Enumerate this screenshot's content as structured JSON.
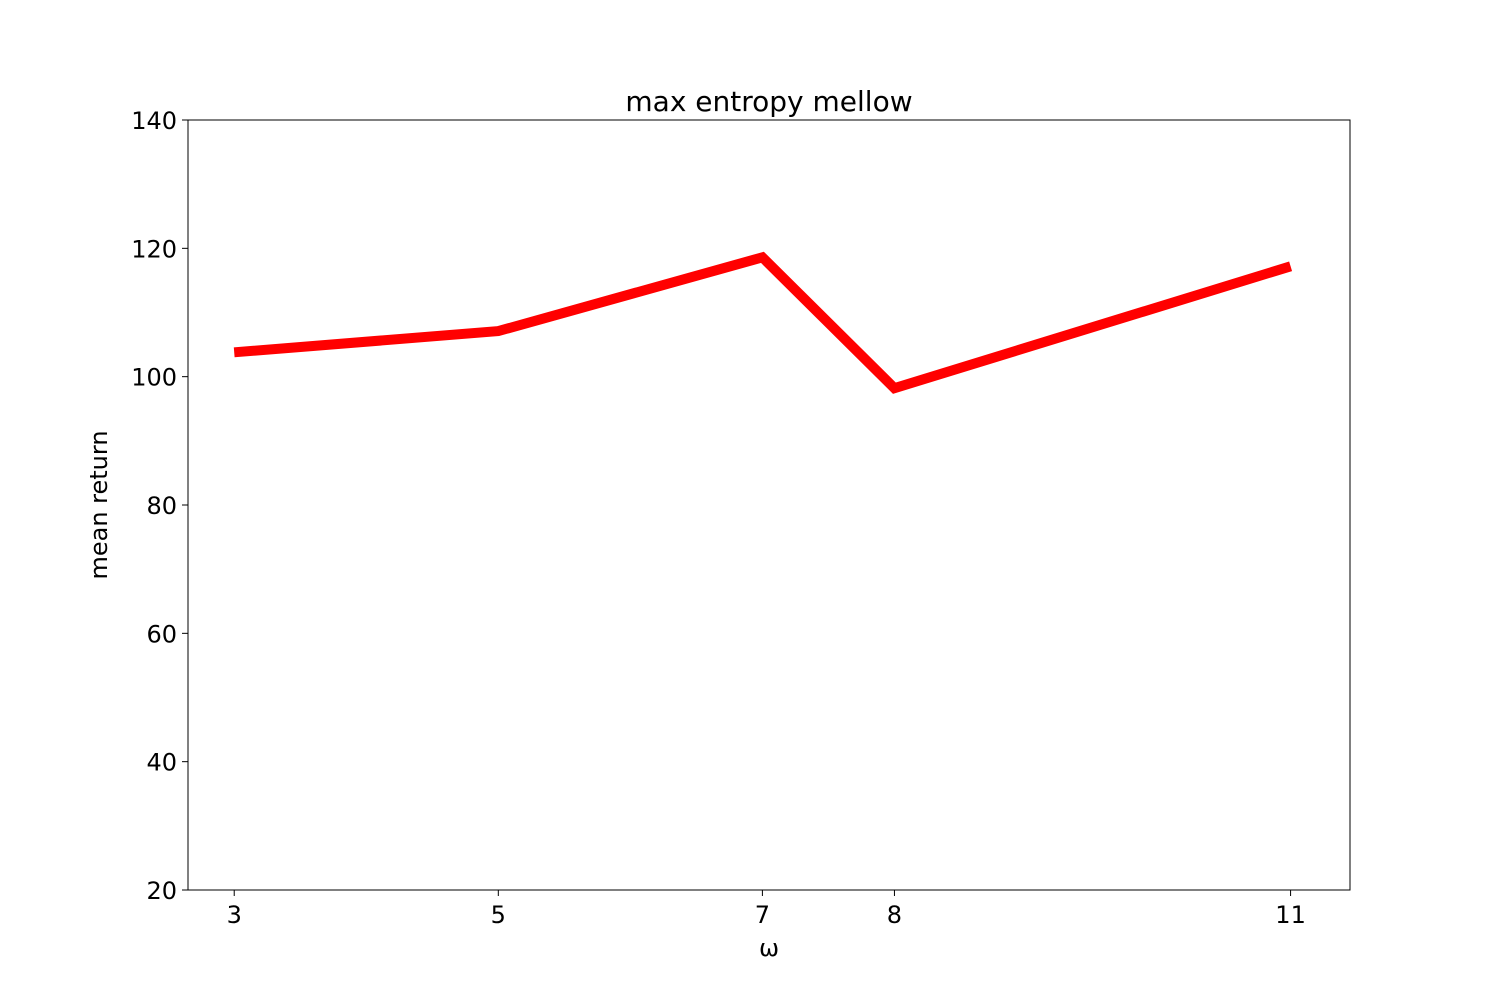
{
  "chart_data": {
    "type": "line",
    "title": "max entropy mellow",
    "xlabel": "ω",
    "ylabel": "mean return",
    "x": [
      3,
      5,
      7,
      8,
      11
    ],
    "x_ticks": [
      "3",
      "5",
      "7",
      "8",
      "11"
    ],
    "series": [
      {
        "values": [
          103.8,
          107.1,
          118.6,
          98.2,
          117.2
        ],
        "color": "#ff0000"
      }
    ],
    "xlim": [
      2.65,
      11.45
    ],
    "ylim": [
      20,
      140
    ],
    "y_ticks": [
      20,
      40,
      60,
      80,
      100,
      120,
      140
    ],
    "grid": false
  }
}
